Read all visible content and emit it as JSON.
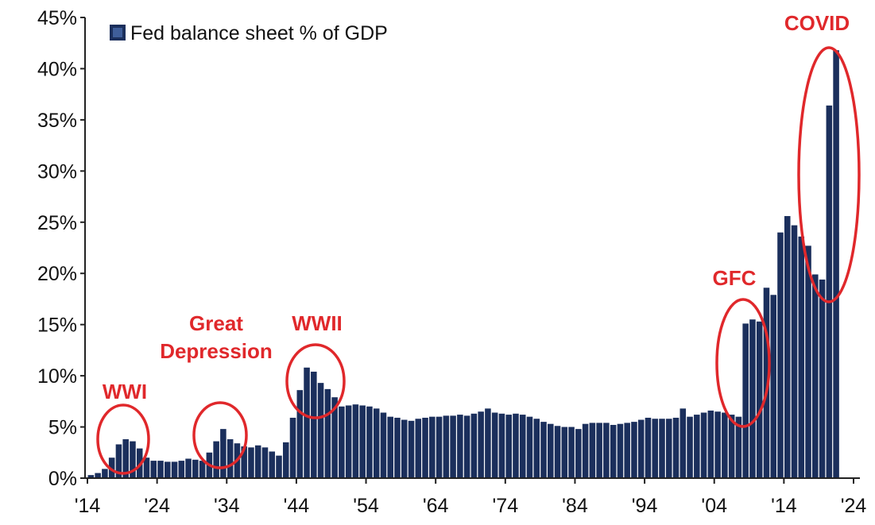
{
  "chart_data": {
    "type": "bar",
    "legend": {
      "label": "Fed balance sheet % of GDP",
      "position": "top-left"
    },
    "ylim": [
      0,
      45
    ],
    "xlim": [
      1914,
      2024
    ],
    "yticks": [
      0,
      5,
      10,
      15,
      20,
      25,
      30,
      35,
      40,
      45
    ],
    "ytick_labels": [
      "0%",
      "5%",
      "10%",
      "15%",
      "20%",
      "25%",
      "30%",
      "35%",
      "40%",
      "45%"
    ],
    "xticks": [
      1914,
      1924,
      1934,
      1944,
      1954,
      1964,
      1974,
      1984,
      1994,
      2004,
      2014,
      2024
    ],
    "xtick_labels": [
      "'14",
      "'24",
      "'34",
      "'44",
      "'54",
      "'64",
      "'74",
      "'84",
      "'94",
      "'04",
      "'14",
      "'24"
    ],
    "grid": false,
    "colors": {
      "bars": "#1b2f5c",
      "annotation": "#e0282b"
    },
    "series": [
      {
        "x": [
          1914,
          1915,
          1916,
          1917,
          1918,
          1919,
          1920,
          1921,
          1922,
          1923,
          1924,
          1925,
          1926,
          1927,
          1928,
          1929,
          1930,
          1931,
          1932,
          1933,
          1934,
          1935,
          1936,
          1937,
          1938,
          1939,
          1940,
          1941,
          1942,
          1943,
          1944,
          1945,
          1946,
          1947,
          1948,
          1949,
          1950,
          1951,
          1952,
          1953,
          1954,
          1955,
          1956,
          1957,
          1958,
          1959,
          1960,
          1961,
          1962,
          1963,
          1964,
          1965,
          1966,
          1967,
          1968,
          1969,
          1970,
          1971,
          1972,
          1973,
          1974,
          1975,
          1976,
          1977,
          1978,
          1979,
          1980,
          1981,
          1982,
          1983,
          1984,
          1985,
          1986,
          1987,
          1988,
          1989,
          1990,
          1991,
          1992,
          1993,
          1994,
          1995,
          1996,
          1997,
          1998,
          1999,
          2000,
          2001,
          2002,
          2003,
          2004,
          2005,
          2006,
          2007,
          2008,
          2009,
          2010,
          2011,
          2012,
          2013,
          2014,
          2015,
          2016,
          2017,
          2018,
          2019,
          2020,
          2021
        ],
        "values": [
          0.3,
          0.5,
          0.9,
          2.0,
          3.3,
          3.8,
          3.6,
          2.9,
          2.0,
          1.7,
          1.7,
          1.6,
          1.6,
          1.7,
          1.9,
          1.8,
          1.7,
          2.5,
          3.6,
          4.8,
          3.8,
          3.4,
          3.1,
          3.0,
          3.2,
          3.0,
          2.6,
          2.2,
          3.5,
          5.9,
          8.6,
          10.8,
          10.4,
          9.3,
          8.7,
          7.9,
          7.0,
          7.1,
          7.2,
          7.1,
          7.0,
          6.8,
          6.4,
          6.0,
          5.9,
          5.7,
          5.6,
          5.8,
          5.9,
          6.0,
          6.0,
          6.1,
          6.1,
          6.2,
          6.1,
          6.3,
          6.5,
          6.8,
          6.4,
          6.3,
          6.2,
          6.3,
          6.2,
          6.0,
          5.8,
          5.5,
          5.3,
          5.1,
          5.0,
          5.0,
          4.8,
          5.3,
          5.4,
          5.4,
          5.4,
          5.2,
          5.3,
          5.4,
          5.5,
          5.7,
          5.9,
          5.8,
          5.8,
          5.8,
          5.9,
          6.8,
          6.0,
          6.2,
          6.4,
          6.6,
          6.5,
          6.4,
          6.2,
          6.0,
          15.1,
          15.5,
          15.3,
          18.6,
          17.9,
          24.0,
          25.6,
          24.7,
          23.6,
          22.7,
          19.9,
          19.4,
          36.4,
          41.8
        ]
      }
    ],
    "annotations": [
      {
        "lines": [
          "WWI"
        ]
      },
      {
        "lines": [
          "Great",
          "Depression"
        ]
      },
      {
        "lines": [
          "WWII"
        ]
      },
      {
        "lines": [
          "GFC"
        ]
      },
      {
        "lines": [
          "COVID"
        ]
      }
    ]
  }
}
